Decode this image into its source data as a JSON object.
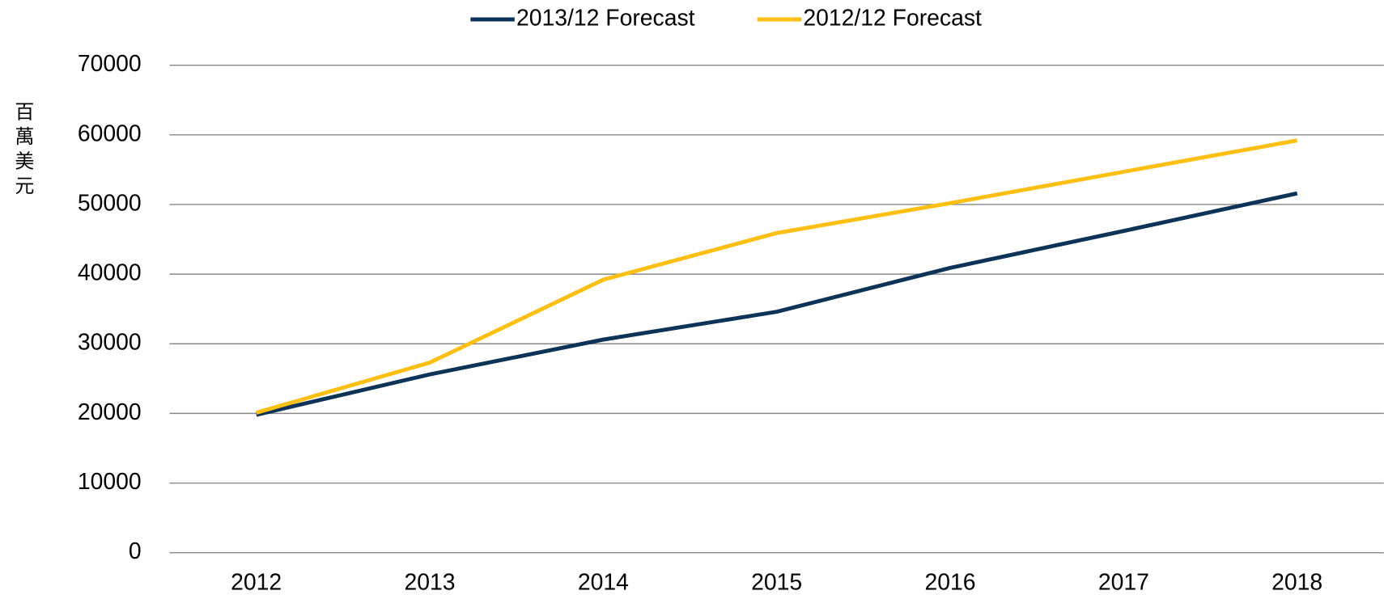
{
  "chart_data": {
    "type": "line",
    "y_label": "百萬美元",
    "categories": [
      "2012",
      "2013",
      "2014",
      "2015",
      "2016",
      "2017",
      "2018"
    ],
    "series": [
      {
        "name": "2013/12 Forecast",
        "color": "#0e3358",
        "values": [
          19800,
          25600,
          30600,
          34600,
          40900,
          46200,
          51600
        ]
      },
      {
        "name": "2012/12 Forecast",
        "color": "#fcbf12",
        "values": [
          20100,
          27300,
          39200,
          45900,
          50200,
          54700,
          59200
        ]
      }
    ],
    "ylim": [
      0,
      70000
    ],
    "yticks": [
      0,
      10000,
      20000,
      30000,
      40000,
      50000,
      60000,
      70000
    ],
    "grid": true,
    "legend": "top"
  }
}
